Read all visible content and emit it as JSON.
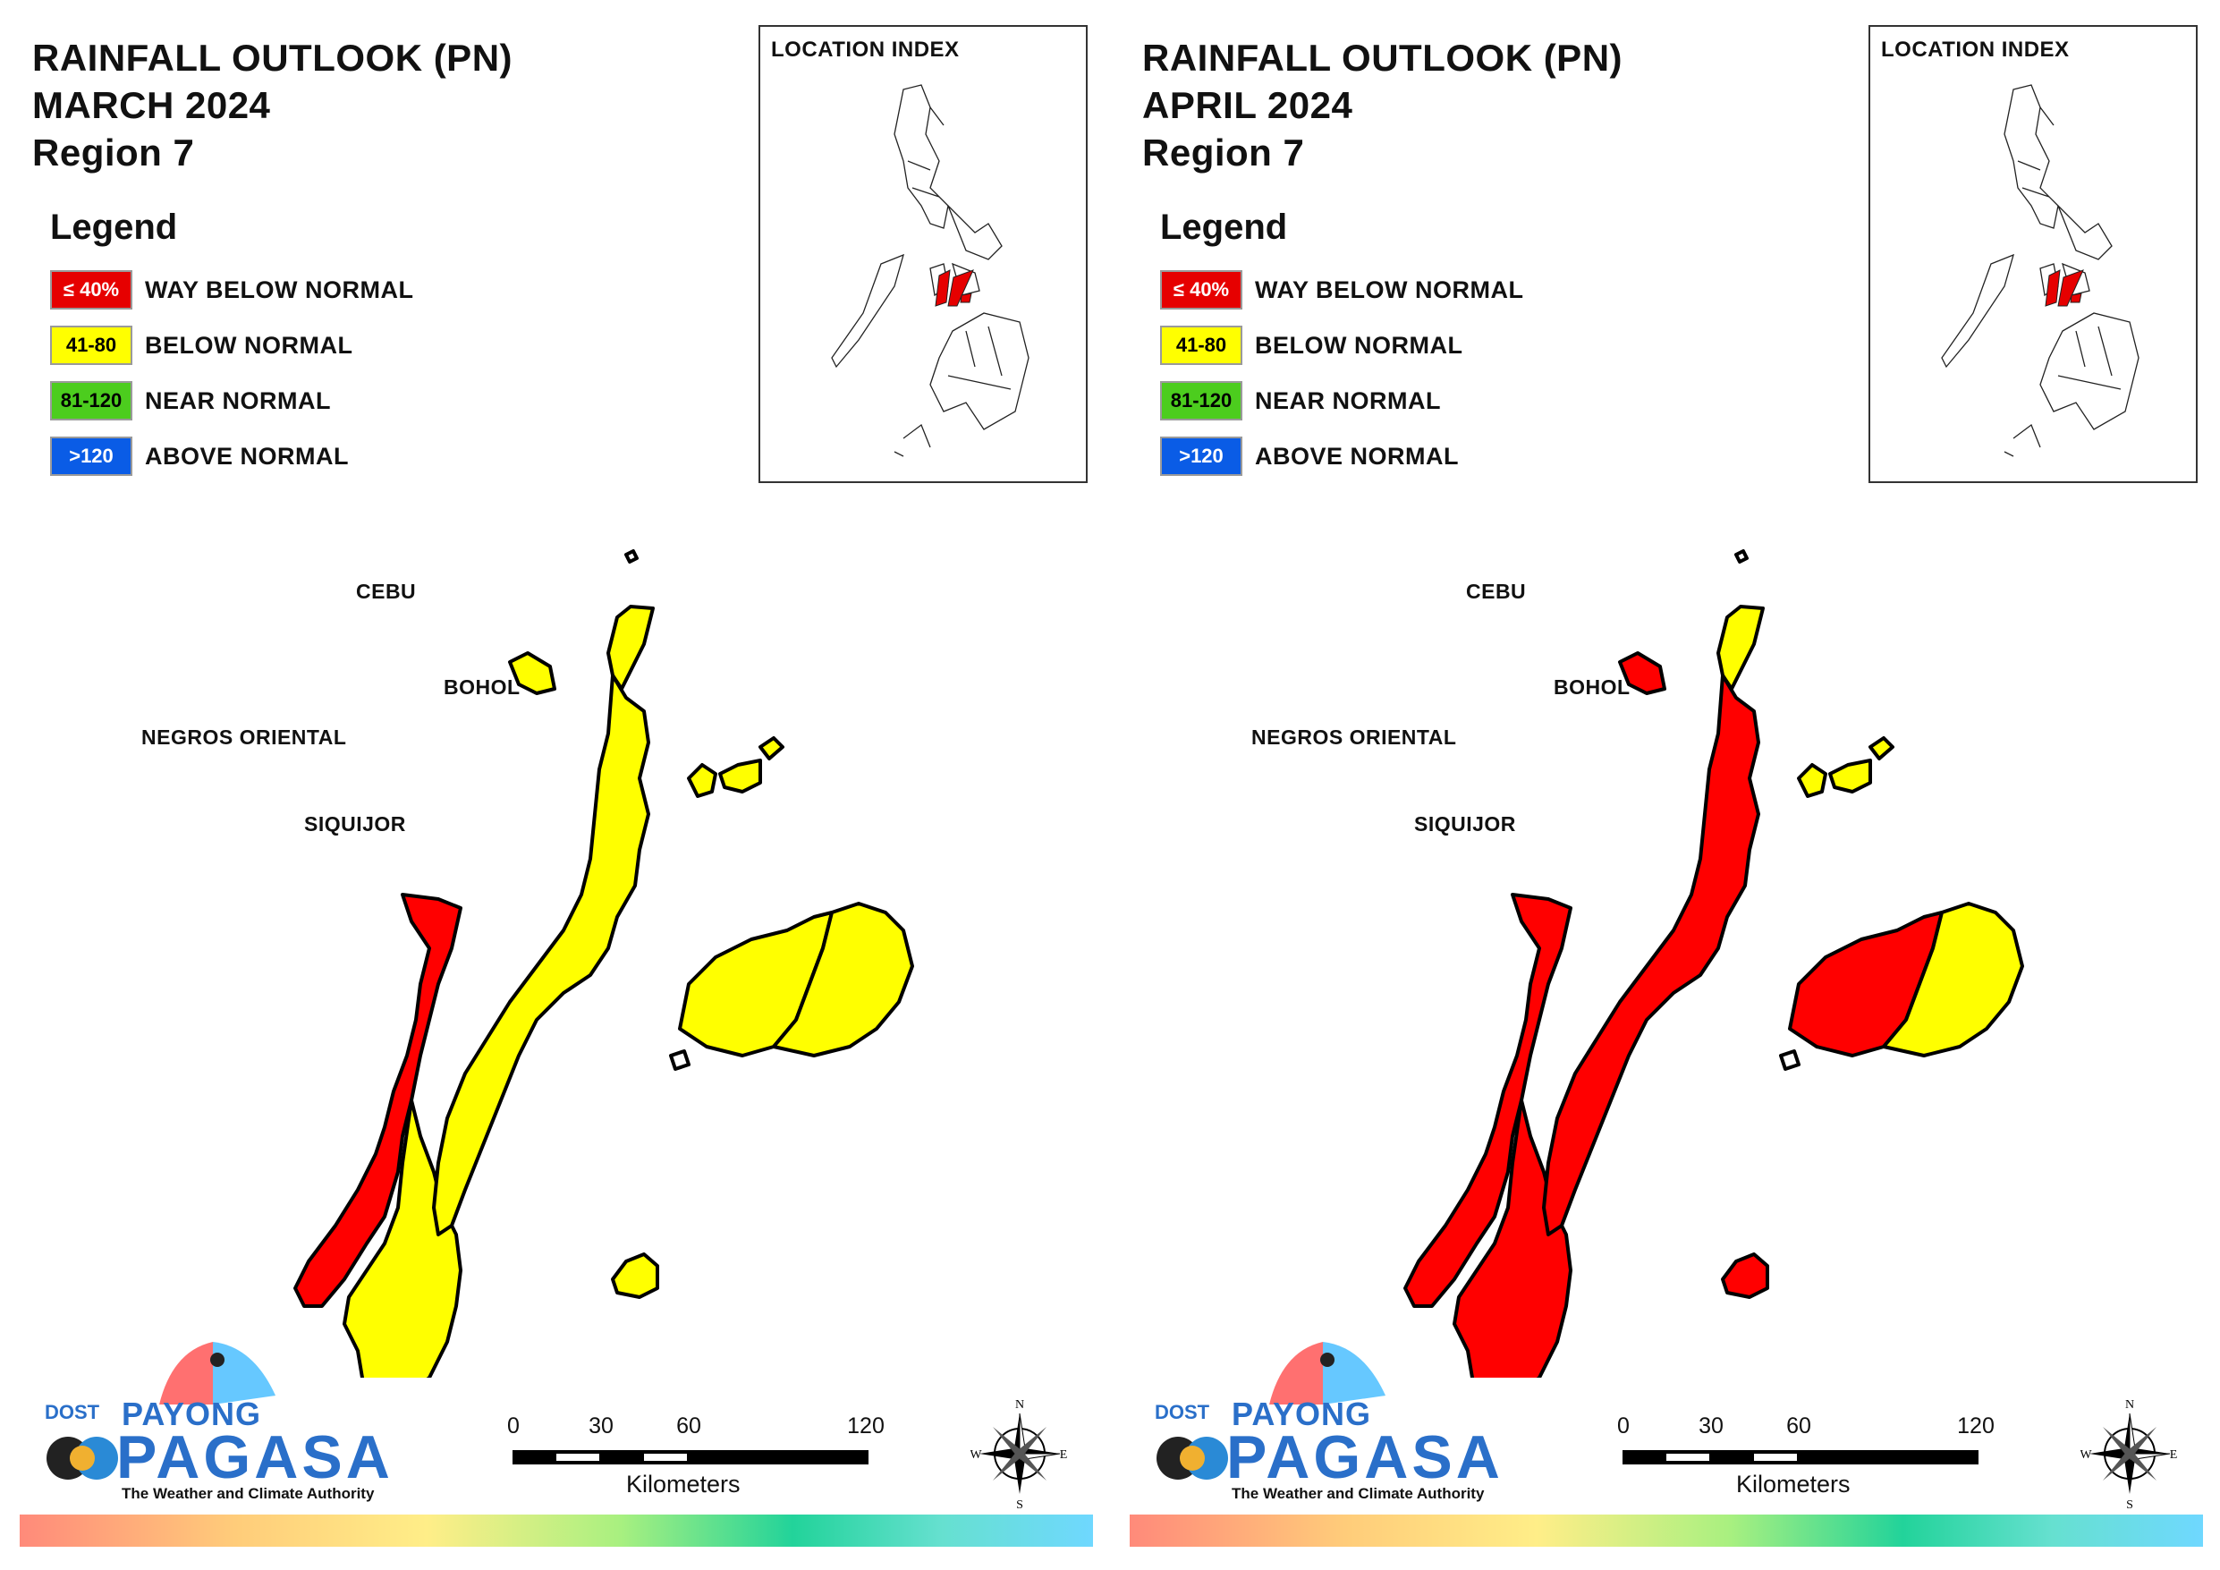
{
  "maps": [
    {
      "title_line1": "RAINFALL OUTLOOK (PN)",
      "title_line2": "MARCH 2024",
      "title_line3": "Region 7",
      "province_colors": {
        "negros_north": "red",
        "negros_south": "yellow",
        "cebu_north": "yellow",
        "cebu_main": "yellow",
        "bohol_west": "yellow",
        "bohol_east": "yellow",
        "siquijor": "yellow",
        "bantayan": "yellow",
        "camotes": "yellow"
      }
    },
    {
      "title_line1": "RAINFALL OUTLOOK (PN)",
      "title_line2": "APRIL 2024",
      "title_line3": "Region 7",
      "province_colors": {
        "negros_north": "red",
        "negros_south": "red",
        "cebu_north": "yellow",
        "cebu_main": "red",
        "bohol_west": "red",
        "bohol_east": "yellow",
        "siquijor": "red",
        "bantayan": "red",
        "camotes": "yellow"
      }
    }
  ],
  "legend": {
    "title": "Legend",
    "items": [
      {
        "range": "≤ 40%",
        "label": "WAY BELOW NORMAL",
        "color": "#e60000",
        "text_color": "#ffffff"
      },
      {
        "range": "41-80",
        "label": "BELOW NORMAL",
        "color": "#ffff00",
        "text_color": "#000000"
      },
      {
        "range": "81-120",
        "label": "NEAR NORMAL",
        "color": "#4ccd1e",
        "text_color": "#000000"
      },
      {
        "range": ">120",
        "label": "ABOVE NORMAL",
        "color": "#0a5ce6",
        "text_color": "#ffffff"
      }
    ]
  },
  "location_index": {
    "title": "LOCATION INDEX"
  },
  "map_labels": {
    "cebu": "CEBU",
    "bohol": "BOHOL",
    "negros": "NEGROS ORIENTAL",
    "siquijor": "SIQUIJOR"
  },
  "colors": {
    "red": "#ff0000",
    "yellow": "#ffff00",
    "outline": "#000000"
  },
  "logo": {
    "dost": "DOST",
    "payong": "PAYONG",
    "pagasa": "PAGASA",
    "tagline": "The Weather and Climate Authority"
  },
  "scale": {
    "ticks": [
      "0",
      "30",
      "60",
      "120"
    ],
    "unit": "Kilometers"
  },
  "compass": {
    "n": "N",
    "e": "E",
    "s": "S",
    "w": "W"
  }
}
